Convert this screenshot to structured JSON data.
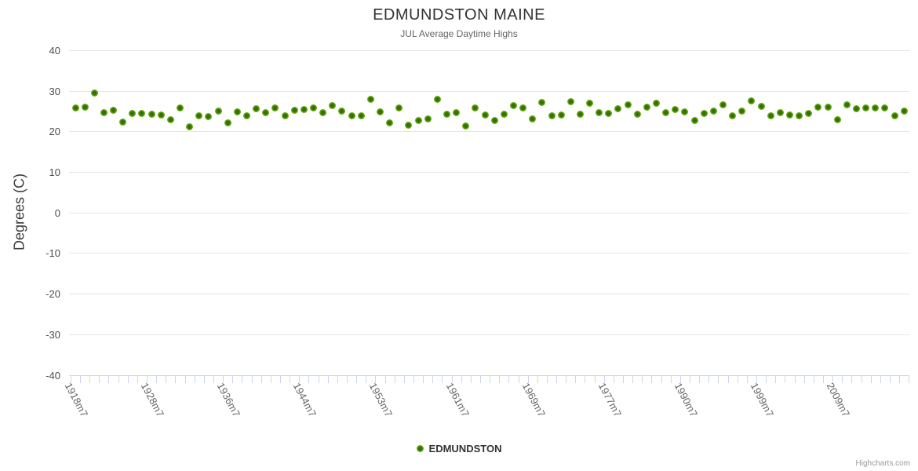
{
  "chart": {
    "title": "EDMUNDSTON MAINE",
    "subtitle": "JUL Average Daytime Highs",
    "legend_label": "EDMUNDSTON",
    "credits": "Highcharts.com",
    "colors": {
      "point_outer": "#87c516",
      "point_inner": "#2e7005",
      "grid": "#e6e6e6",
      "axis_ticks": "#ccd6eb",
      "title_text": "#333333",
      "subtitle_text": "#666666",
      "credits_text": "#9a9a9a"
    }
  },
  "chart_data": {
    "type": "scatter",
    "title": "EDMUNDSTON MAINE",
    "subtitle": "JUL Average Daytime Highs",
    "xlabel": "",
    "ylabel": "Degrees (C)",
    "ylim": [
      -40,
      40
    ],
    "y_tick_step": 10,
    "y_tick_labels": [
      "40",
      "30",
      "20",
      "10",
      "0",
      "-10",
      "-20",
      "-30",
      "-40"
    ],
    "grid": "horizontal",
    "legend_position": "bottom-center",
    "x_tick_labels": [
      {
        "index": 0,
        "label": "1918m7"
      },
      {
        "index": 8,
        "label": "1928m7"
      },
      {
        "index": 16,
        "label": "1936m7"
      },
      {
        "index": 24,
        "label": "1944m7"
      },
      {
        "index": 32,
        "label": "1953m7"
      },
      {
        "index": 40,
        "label": "1961m7"
      },
      {
        "index": 48,
        "label": "1969m7"
      },
      {
        "index": 56,
        "label": "1977m7"
      },
      {
        "index": 64,
        "label": "1990m7"
      },
      {
        "index": 72,
        "label": "1999m7"
      },
      {
        "index": 80,
        "label": "2009m7"
      }
    ],
    "series": [
      {
        "name": "EDMUNDSTON",
        "point_count": 88,
        "values": [
          25.7,
          25.9,
          29.4,
          24.7,
          25.2,
          22.3,
          24.5,
          24.4,
          24.2,
          24.0,
          22.8,
          25.8,
          21.2,
          23.8,
          23.6,
          25.0,
          22.1,
          24.8,
          23.8,
          25.6,
          24.6,
          25.8,
          23.9,
          25.2,
          25.4,
          25.8,
          24.6,
          26.3,
          25.0,
          23.9,
          23.9,
          27.9,
          24.8,
          22.2,
          25.8,
          21.6,
          22.7,
          23.1,
          27.9,
          24.3,
          24.6,
          21.3,
          25.7,
          24.1,
          22.6,
          24.3,
          26.4,
          25.7,
          23.1,
          27.2,
          23.8,
          24.1,
          27.4,
          24.2,
          27.0,
          24.7,
          24.5,
          25.6,
          26.5,
          24.3,
          26.0,
          26.9,
          24.6,
          25.3,
          24.8,
          22.7,
          24.5,
          25.1,
          26.6,
          23.9,
          25.0,
          27.5,
          26.1,
          23.8,
          24.6,
          24.1,
          23.9,
          24.5,
          25.9,
          25.9,
          22.8,
          26.6,
          25.6,
          25.7,
          25.8,
          25.8,
          23.9,
          25.0
        ]
      }
    ]
  }
}
